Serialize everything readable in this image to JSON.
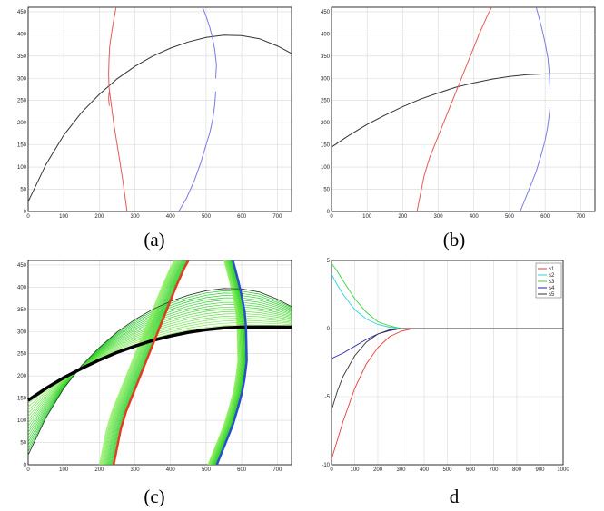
{
  "captions": [
    "(a)",
    "(b)",
    "(c)",
    "d"
  ],
  "chart_data": [
    {
      "type": "line",
      "panel": "a",
      "xlim": [
        0,
        740
      ],
      "ylim": [
        0,
        460
      ],
      "xticks": [
        "0",
        "100",
        "200",
        "300",
        "400",
        "500",
        "600",
        "700"
      ],
      "yticks": [
        "0",
        "50",
        "100",
        "150",
        "200",
        "250",
        "300",
        "350",
        "400",
        "450"
      ],
      "grid": true,
      "series": [
        {
          "color": "#333333",
          "x": [
            0,
            50,
            100,
            150,
            200,
            250,
            300,
            350,
            400,
            450,
            500,
            550,
            600,
            650,
            700,
            740
          ],
          "y": [
            22,
            106,
            172,
            223,
            264,
            299,
            327,
            350,
            368,
            382,
            392,
            397,
            396,
            389,
            373,
            356
          ]
        },
        {
          "color": "#e35a5a",
          "x": [
            247,
            240,
            234,
            229,
            227,
            226,
            227,
            232,
            240,
            252,
            266,
            278
          ],
          "y": [
            460,
            430,
            400,
            370,
            340,
            310,
            280,
            250,
            200,
            140,
            70,
            0
          ]
        },
        {
          "color": "#e35a5a",
          "x": [
            229,
            227,
            226,
            227,
            228
          ],
          "y": [
            275,
            265,
            255,
            245,
            238
          ]
        },
        {
          "color": "#7a7ae0",
          "x": [
            490,
            500,
            510,
            518,
            524,
            527,
            529,
            528,
            527
          ],
          "y": [
            460,
            440,
            415,
            390,
            365,
            345,
            330,
            315,
            300
          ]
        },
        {
          "color": "#7a7ae0",
          "x": [
            527,
            524,
            519,
            511,
            500,
            485,
            467,
            445,
            423
          ],
          "y": [
            270,
            240,
            210,
            180,
            150,
            110,
            70,
            30,
            0
          ]
        }
      ]
    },
    {
      "type": "line",
      "panel": "b",
      "xlim": [
        0,
        740
      ],
      "ylim": [
        0,
        460
      ],
      "xticks": [
        "0",
        "100",
        "200",
        "300",
        "400",
        "500",
        "600",
        "700"
      ],
      "yticks": [
        "0",
        "50",
        "100",
        "150",
        "200",
        "250",
        "300",
        "350",
        "400",
        "450"
      ],
      "grid": true,
      "series": [
        {
          "color": "#333333",
          "x": [
            0,
            50,
            100,
            150,
            200,
            250,
            300,
            350,
            400,
            450,
            500,
            550,
            600,
            650,
            700,
            740
          ],
          "y": [
            145,
            172,
            196,
            217,
            236,
            253,
            267,
            280,
            290,
            298,
            304,
            308,
            310,
            310,
            310,
            310
          ]
        },
        {
          "color": "#e35a5a",
          "x": [
            240,
            250,
            260,
            275,
            295,
            315,
            340,
            365,
            390,
            415,
            440,
            450
          ],
          "y": [
            0,
            40,
            80,
            120,
            160,
            200,
            250,
            300,
            350,
            400,
            445,
            460
          ]
        },
        {
          "color": "#7a7ae0",
          "x": [
            530,
            545,
            560,
            575,
            590,
            600,
            607,
            612,
            614
          ],
          "y": [
            0,
            30,
            60,
            90,
            130,
            160,
            190,
            220,
            235
          ]
        },
        {
          "color": "#7a7ae0",
          "x": [
            614,
            612,
            608,
            600,
            590,
            580,
            575
          ],
          "y": [
            275,
            310,
            345,
            380,
            415,
            445,
            460
          ]
        }
      ]
    },
    {
      "type": "line",
      "panel": "c",
      "xlim": [
        0,
        740
      ],
      "ylim": [
        0,
        460
      ],
      "xticks": [
        "0",
        "100",
        "200",
        "300",
        "400",
        "500",
        "600",
        "700"
      ],
      "yticks": [
        "0",
        "50",
        "100",
        "150",
        "200",
        "250",
        "300",
        "350",
        "400",
        "450"
      ],
      "grid": true,
      "series": [
        {
          "color": "#333333",
          "x": [
            0,
            50,
            100,
            150,
            200,
            250,
            300,
            350,
            400,
            450,
            500,
            550,
            600,
            650,
            700,
            740
          ],
          "y": [
            22,
            106,
            172,
            223,
            264,
            299,
            327,
            350,
            368,
            382,
            392,
            397,
            396,
            389,
            373,
            356
          ]
        },
        {
          "color": "#000000",
          "x": [
            0,
            50,
            100,
            150,
            200,
            250,
            300,
            350,
            400,
            450,
            500,
            550,
            600,
            650,
            700,
            740
          ],
          "y": [
            145,
            172,
            196,
            217,
            236,
            253,
            267,
            280,
            290,
            298,
            304,
            308,
            310,
            310,
            310,
            310
          ]
        },
        {
          "color": "#e03c1e",
          "x": [
            240,
            250,
            260,
            275,
            295,
            315,
            340,
            365,
            390,
            415,
            440,
            450
          ],
          "y": [
            0,
            40,
            80,
            120,
            160,
            200,
            250,
            300,
            350,
            400,
            445,
            460
          ]
        },
        {
          "color": "#2a4fc8",
          "x": [
            530,
            545,
            560,
            575,
            590,
            600,
            607,
            612,
            614,
            612,
            608,
            600,
            590,
            580,
            575
          ],
          "y": [
            0,
            30,
            60,
            90,
            130,
            160,
            190,
            220,
            235,
            310,
            345,
            380,
            415,
            445,
            460
          ]
        }
      ]
    },
    {
      "type": "line",
      "panel": "d",
      "xlim": [
        0,
        1000
      ],
      "ylim": [
        -10,
        5
      ],
      "xticks": [
        "0",
        "100",
        "200",
        "300",
        "400",
        "500",
        "600",
        "700",
        "800",
        "900",
        "1000"
      ],
      "yticks": [
        "-10",
        "-5",
        "0",
        "5"
      ],
      "grid": true,
      "legend": "top-right",
      "series": [
        {
          "name": "s1",
          "color": "#e83a3a",
          "x": [
            0,
            25,
            50,
            100,
            150,
            200,
            250,
            300,
            350,
            400,
            1000
          ],
          "y": [
            -9.6,
            -8.2,
            -6.8,
            -4.4,
            -2.6,
            -1.4,
            -0.6,
            -0.2,
            0,
            0,
            0
          ]
        },
        {
          "name": "s2",
          "color": "#30d0e0",
          "x": [
            0,
            25,
            50,
            100,
            150,
            200,
            250,
            300,
            350,
            1000
          ],
          "y": [
            4.0,
            3.2,
            2.5,
            1.4,
            0.7,
            0.3,
            0.1,
            0,
            0,
            0
          ]
        },
        {
          "name": "s3",
          "color": "#3ad23a",
          "x": [
            0,
            25,
            50,
            100,
            150,
            200,
            250,
            300,
            350,
            1000
          ],
          "y": [
            4.8,
            4.2,
            3.5,
            2.2,
            1.2,
            0.5,
            0.2,
            0,
            0,
            0
          ]
        },
        {
          "name": "s4",
          "color": "#2020b0",
          "x": [
            0,
            25,
            50,
            100,
            150,
            200,
            250,
            300,
            350,
            1000
          ],
          "y": [
            -2.2,
            -2.0,
            -1.8,
            -1.3,
            -0.8,
            -0.4,
            -0.15,
            0,
            0,
            0
          ]
        },
        {
          "name": "s5",
          "color": "#333333",
          "x": [
            0,
            25,
            50,
            100,
            150,
            200,
            250,
            300,
            350,
            1000
          ],
          "y": [
            -6.0,
            -4.6,
            -3.5,
            -2.0,
            -1.0,
            -0.4,
            -0.1,
            0,
            0,
            0
          ]
        }
      ]
    }
  ]
}
